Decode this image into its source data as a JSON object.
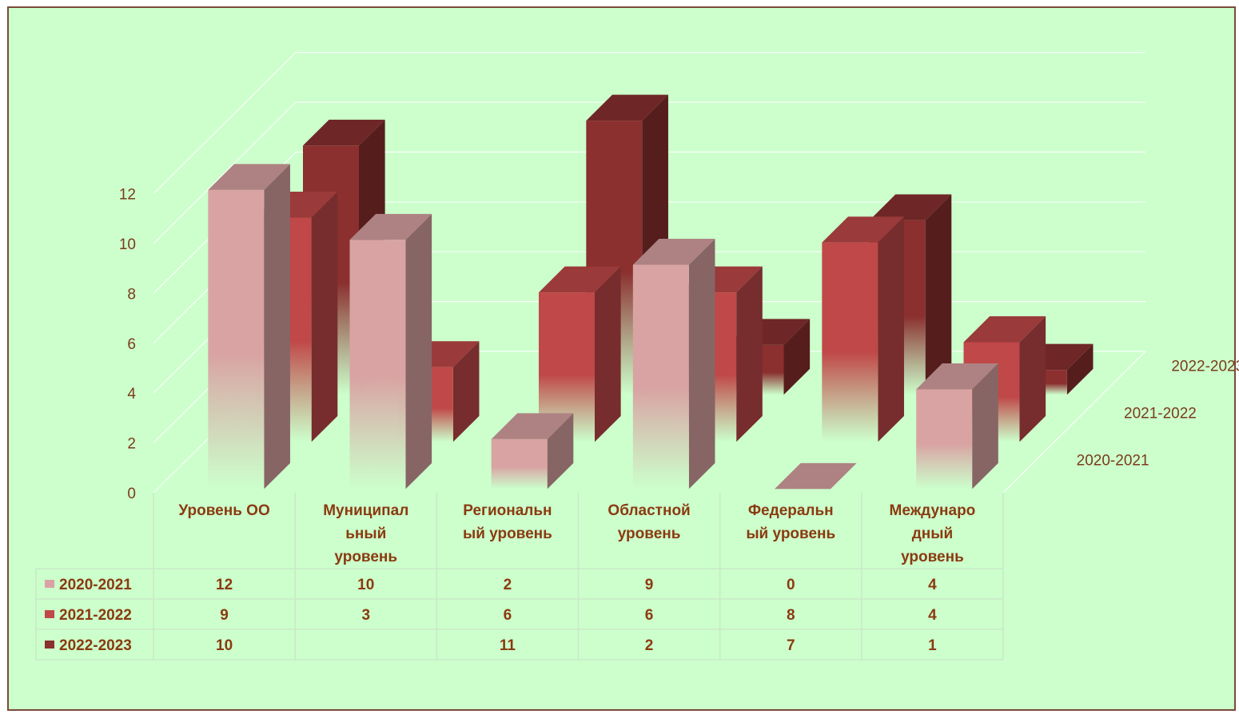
{
  "chart_data": {
    "type": "bar",
    "categories": [
      [
        "Уровень ОО"
      ],
      [
        "Муниципал",
        "ьный",
        "уровень"
      ],
      [
        "Региональн",
        "ый уровень"
      ],
      [
        "Областной",
        "уровень"
      ],
      [
        "Федеральн",
        "ый уровень"
      ],
      [
        "Междунаро",
        "дный",
        "уровень"
      ]
    ],
    "series": [
      {
        "name": "2020-2021",
        "values": [
          12,
          10,
          2,
          9,
          0,
          4
        ],
        "color": "#d9a3a3"
      },
      {
        "name": "2021-2022",
        "values": [
          9,
          3,
          6,
          6,
          8,
          4
        ],
        "color": "#c04848"
      },
      {
        "name": "2022-2023",
        "values": [
          10,
          null,
          11,
          2,
          7,
          1
        ],
        "color": "#8b2f2f"
      }
    ],
    "table_cells": [
      [
        "12",
        "10",
        "2",
        "9",
        "0",
        "4"
      ],
      [
        "9",
        "3",
        "6",
        "6",
        "8",
        "4"
      ],
      [
        "10",
        "",
        "11",
        "2",
        "7",
        "1"
      ]
    ],
    "ylim": [
      0,
      12
    ],
    "yticks": [
      "0",
      "2",
      "4",
      "6",
      "8",
      "10",
      "12"
    ],
    "grid": true,
    "legend": "data-table",
    "background": "#ccffcc"
  }
}
